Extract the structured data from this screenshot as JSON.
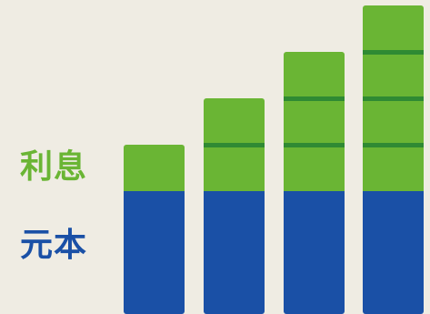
{
  "labels": {
    "interest": "利息",
    "principal": "元本"
  },
  "colors": {
    "background": "#efece3",
    "interest": "#6ab534",
    "interest_divider": "#2f8a33",
    "principal": "#1a50a6",
    "label_green": "#6ab534",
    "label_blue": "#1a50a6"
  },
  "bars": [
    {
      "principal": 1,
      "interest_segments": 1
    },
    {
      "principal": 1,
      "interest_segments": 2
    },
    {
      "principal": 1,
      "interest_segments": 3
    },
    {
      "principal": 1,
      "interest_segments": 4
    }
  ]
}
